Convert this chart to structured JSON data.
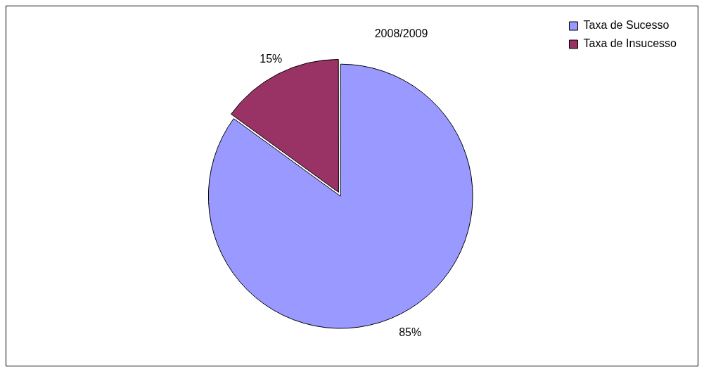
{
  "chart_data": {
    "type": "pie",
    "title": "2008/2009",
    "categories": [
      "Taxa de Sucesso",
      "Taxa de Insucesso"
    ],
    "values": [
      85,
      15
    ],
    "colors": [
      "#9999ff",
      "#993366"
    ],
    "value_labels": [
      "85%",
      "15%"
    ],
    "legend": "top right"
  }
}
